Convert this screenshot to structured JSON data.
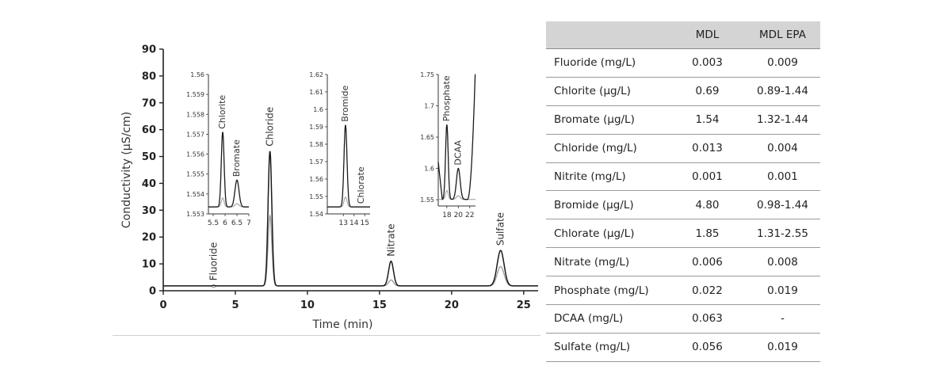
{
  "chart_data": {
    "type": "line",
    "xlabel": "Time (min)",
    "ylabel": "Conductivity (μS/cm)",
    "xlim": [
      0,
      26
    ],
    "ylim": [
      0,
      90
    ],
    "xticks": [
      0,
      5,
      10,
      15,
      20,
      25
    ],
    "yticks": [
      0,
      10,
      20,
      30,
      40,
      50,
      60,
      70,
      80,
      90
    ],
    "baseline": 1.8,
    "peaks": [
      {
        "label": "Fluoride",
        "x": 3.5,
        "height_dark": 2.0,
        "height_light": 1.2
      },
      {
        "label": "Chloride",
        "x": 7.4,
        "height_dark": 52,
        "height_light": 28
      },
      {
        "label": "Nitrate",
        "x": 15.8,
        "height_dark": 11,
        "height_light": 4
      },
      {
        "label": "Sulfate",
        "x": 23.4,
        "height_dark": 15,
        "height_light": 9
      }
    ],
    "insets": [
      {
        "xlim": [
          5.3,
          7
        ],
        "ylim": [
          1.553,
          1.56
        ],
        "xticks": [
          "5.5",
          "6",
          "6.5",
          "7"
        ],
        "yticks": [
          "1.553",
          "1.554",
          "1.555",
          "1.556",
          "1.557",
          "1.558",
          "1.559",
          "1.56"
        ],
        "peaks": [
          {
            "label": "Chlorite",
            "x": 5.9,
            "y": 1.5571
          },
          {
            "label": "Bromate",
            "x": 6.5,
            "y": 1.5547
          }
        ]
      },
      {
        "xlim": [
          11.5,
          15.5
        ],
        "ylim": [
          1.54,
          1.62
        ],
        "xticks": [
          "13",
          "14",
          "15"
        ],
        "yticks": [
          "1.54",
          "1.55",
          "1.56",
          "1.57",
          "1.58",
          "1.59",
          "1.6",
          "1.61",
          "1.62"
        ],
        "peaks": [
          {
            "label": "Bromide",
            "x": 13.2,
            "y": 1.591
          },
          {
            "label": "Chlorate",
            "x": 14.7,
            "y": 1.544
          }
        ]
      },
      {
        "xlim": [
          16.5,
          23
        ],
        "ylim": [
          1.54,
          1.75
        ],
        "xticks": [
          "18",
          "20",
          "22"
        ],
        "yticks": [
          "1.55",
          "1.6",
          "1.65",
          "1.7",
          "1.75"
        ],
        "peaks": [
          {
            "label": "Phosphate",
            "x": 18,
            "y": 1.67
          },
          {
            "label": "DCAA",
            "x": 20,
            "y": 1.6
          }
        ]
      }
    ]
  },
  "table": {
    "headers": [
      "",
      "MDL",
      "MDL EPA"
    ],
    "rows": [
      [
        "Fluoride (mg/L)",
        "0.003",
        "0.009"
      ],
      [
        "Chlorite (µg/L)",
        "0.69",
        "0.89-1.44"
      ],
      [
        "Bromate (µg/L)",
        "1.54",
        "1.32-1.44"
      ],
      [
        "Chloride (mg/L)",
        "0.013",
        "0.004"
      ],
      [
        "Nitrite (mg/L)",
        "0.001",
        "0.001"
      ],
      [
        "Bromide (µg/L)",
        "4.80",
        "0.98-1.44"
      ],
      [
        "Chlorate (µg/L)",
        "1.85",
        "1.31-2.55"
      ],
      [
        "Nitrate (mg/L)",
        "0.006",
        "0.008"
      ],
      [
        "Phosphate (mg/L)",
        "0.022",
        "0.019"
      ],
      [
        "DCAA (mg/L)",
        "0.063",
        "-"
      ],
      [
        "Sulfate (mg/L)",
        "0.056",
        "0.019"
      ]
    ]
  }
}
